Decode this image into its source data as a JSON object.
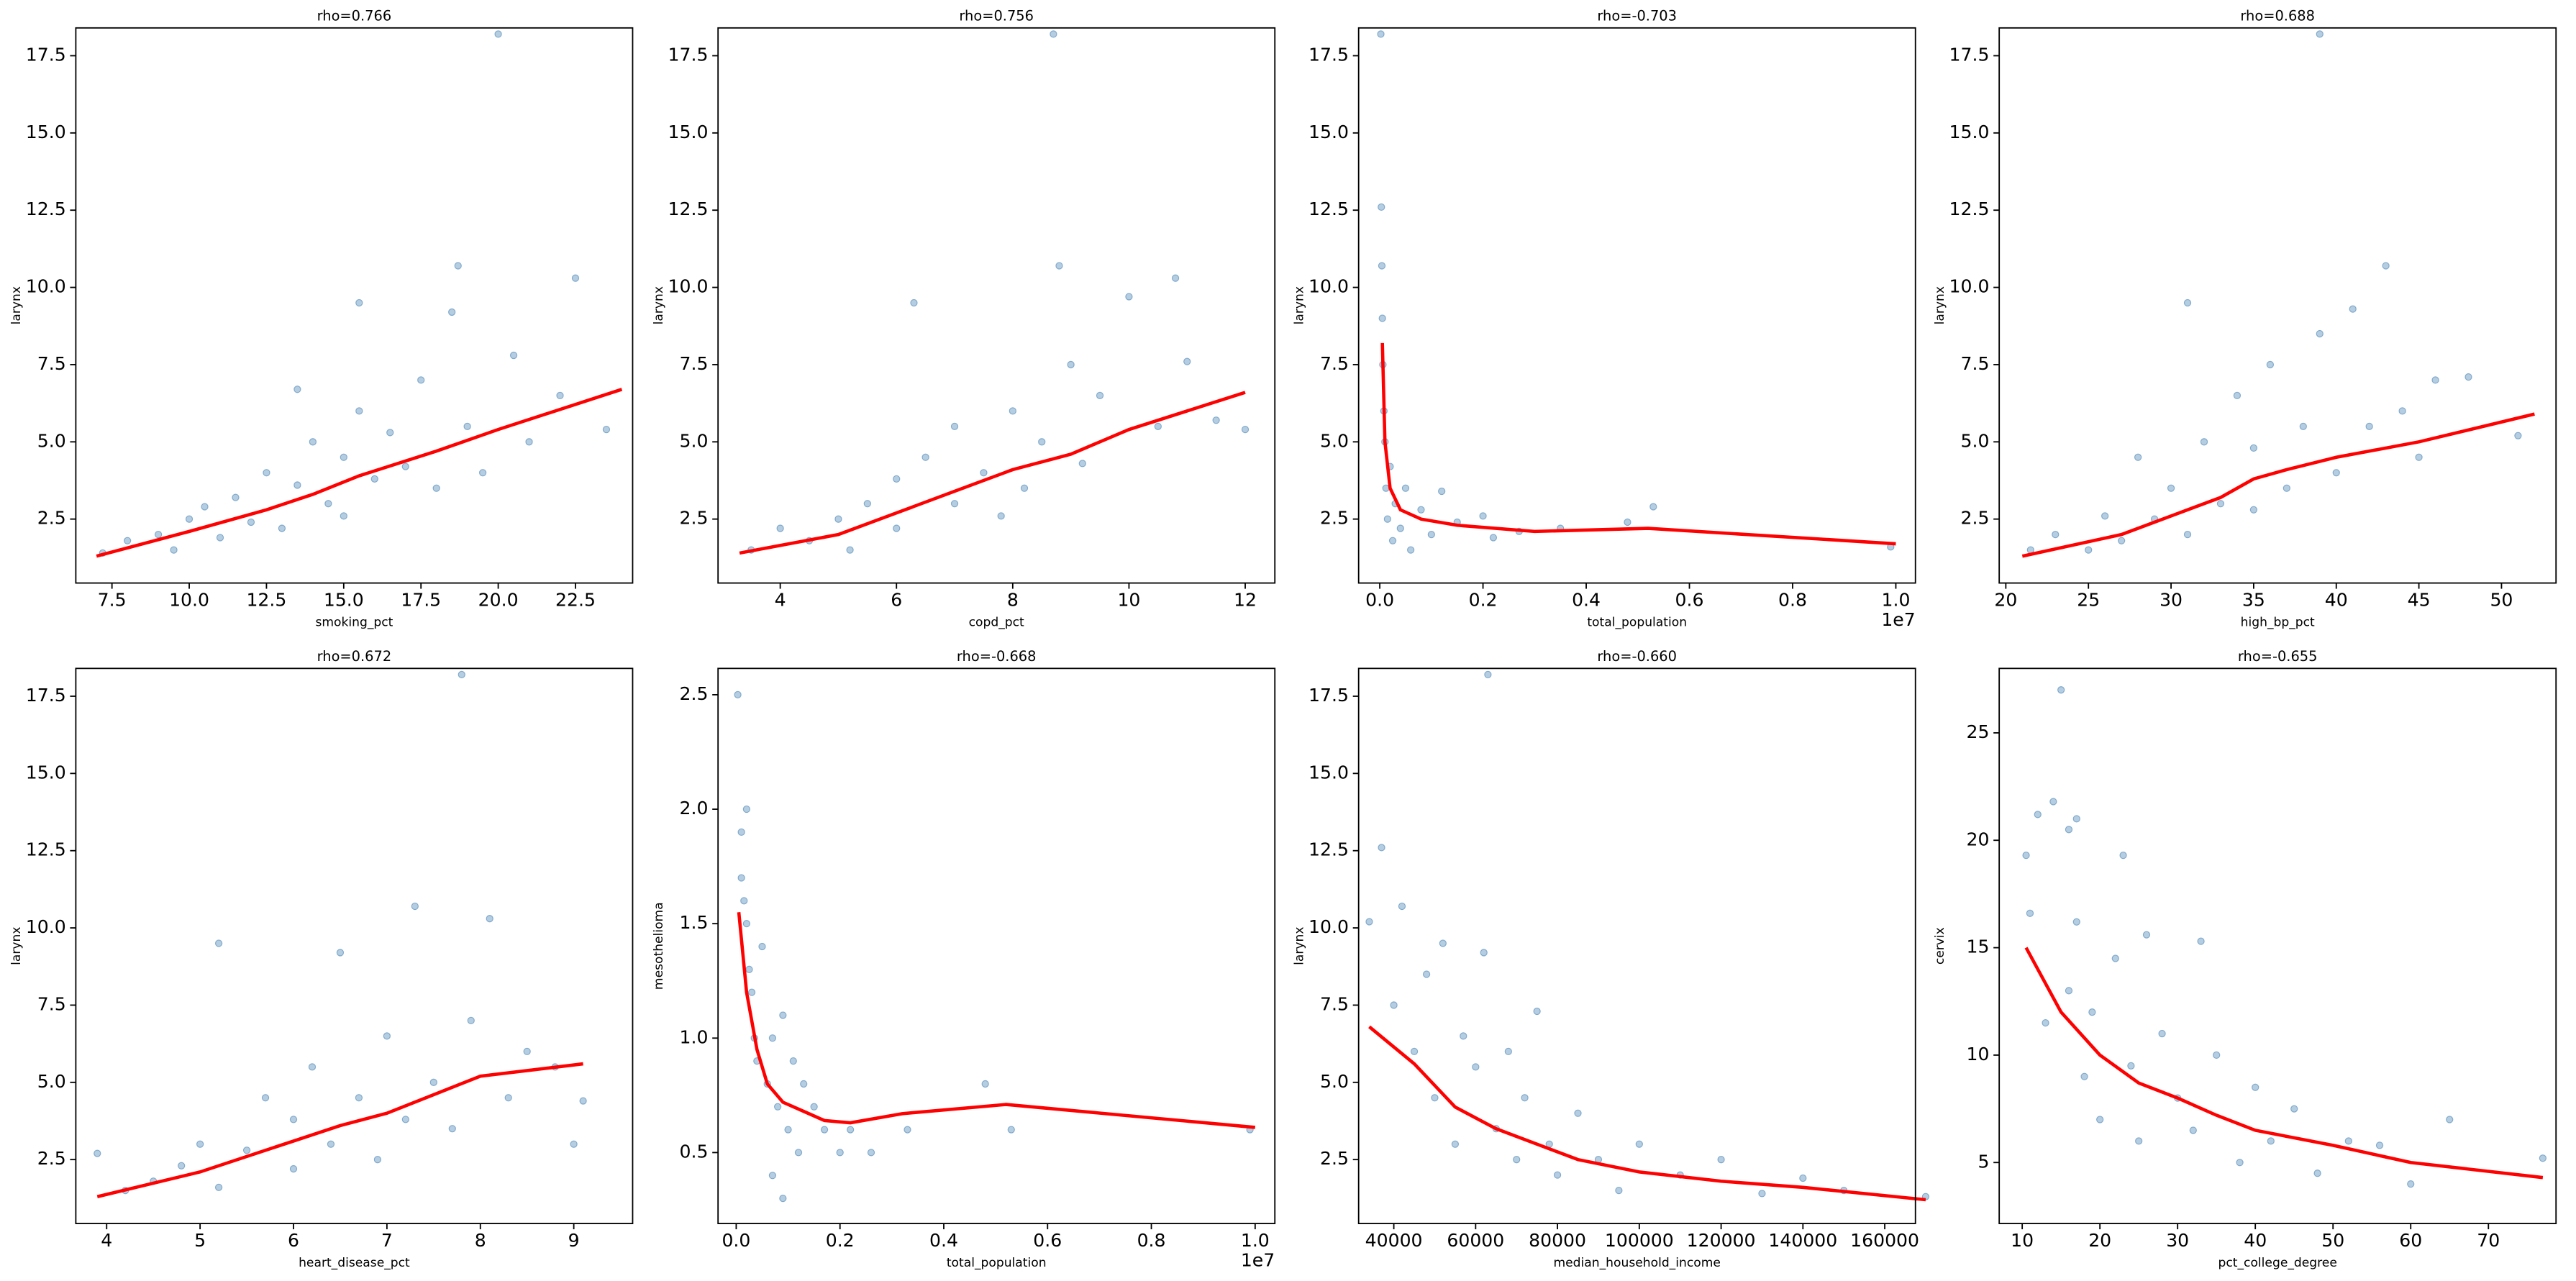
{
  "chart_data": [
    {
      "type": "scatter",
      "title": "rho=0.766",
      "xlabel": "smoking_pct",
      "ylabel": "larynx",
      "color": "#4682b4",
      "trend_color": "red",
      "x": [
        7.2,
        8,
        9,
        9.5,
        10,
        10.5,
        11,
        11.5,
        12,
        12.5,
        13,
        13.5,
        14,
        14.5,
        15,
        15,
        15.5,
        16,
        16.5,
        17,
        17.5,
        18,
        18.5,
        19,
        19.5,
        20,
        20.5,
        21,
        22,
        22.5,
        23.5,
        13.5,
        15.5,
        18.7
      ],
      "y": [
        1.4,
        1.8,
        2.0,
        1.5,
        2.5,
        2.9,
        1.9,
        3.2,
        2.4,
        4.0,
        2.2,
        3.6,
        5.0,
        3.0,
        4.5,
        2.6,
        6.0,
        3.8,
        5.3,
        4.2,
        7.0,
        3.5,
        9.2,
        5.5,
        4.0,
        18.2,
        7.8,
        5.0,
        6.5,
        10.3,
        5.4,
        6.7,
        9.5,
        10.7
      ],
      "line_x": [
        7,
        10,
        12.5,
        14,
        15.5,
        18,
        20,
        24
      ],
      "line_y": [
        1.3,
        2.1,
        2.8,
        3.3,
        3.9,
        4.7,
        5.4,
        6.7
      ],
      "xlim": [
        6.33,
        24.35
      ],
      "ylim": [
        0.43,
        18.4
      ],
      "xticks": [
        7.5,
        {
          "value": 10,
          "label": "10.0"
        },
        12.5,
        {
          "value": 15,
          "label": "15.0"
        },
        17.5,
        {
          "value": 20,
          "label": "20.0"
        },
        22.5
      ],
      "yticks": [
        2.5,
        {
          "value": 5,
          "label": "5.0"
        },
        7.5,
        {
          "value": 10,
          "label": "10.0"
        },
        12.5,
        {
          "value": 15,
          "label": "15.0"
        },
        17.5
      ]
    },
    {
      "type": "scatter",
      "title": "rho=0.756",
      "xlabel": "copd_pct",
      "ylabel": "larynx",
      "color": "#4682b4",
      "trend_color": "red",
      "x": [
        3.5,
        4,
        4.5,
        5,
        5.2,
        5.5,
        6,
        6,
        6.3,
        6.5,
        7,
        7,
        7.5,
        7.8,
        8,
        8.2,
        8.5,
        8.7,
        8.8,
        9,
        9.2,
        9.5,
        10,
        10.5,
        11,
        11.5,
        12,
        10.8
      ],
      "y": [
        1.5,
        2.2,
        1.8,
        2.5,
        1.5,
        3.0,
        2.2,
        3.8,
        9.5,
        4.5,
        3.0,
        5.5,
        4.0,
        2.6,
        6.0,
        3.5,
        5.0,
        18.2,
        10.7,
        7.5,
        4.3,
        6.5,
        9.7,
        5.5,
        7.6,
        5.7,
        5.4,
        10.3
      ],
      "line_x": [
        3.3,
        5,
        6,
        7,
        8,
        9,
        10,
        12
      ],
      "line_y": [
        1.4,
        2.0,
        2.7,
        3.4,
        4.1,
        4.6,
        5.4,
        6.6
      ],
      "xlim": [
        2.93,
        12.51
      ],
      "ylim": [
        0.43,
        18.4
      ],
      "xticks": [
        4,
        6,
        8,
        10,
        12
      ],
      "yticks": [
        2.5,
        {
          "value": 5,
          "label": "5.0"
        },
        7.5,
        {
          "value": 10,
          "label": "10.0"
        },
        12.5,
        {
          "value": 15,
          "label": "15.0"
        },
        17.5
      ]
    },
    {
      "type": "scatter",
      "title": "rho=-0.703",
      "xlabel": "total_population",
      "ylabel": "larynx",
      "x_offset_label": "1e7",
      "color": "#4682b4",
      "trend_color": "red",
      "x": [
        0.002,
        0.003,
        0.004,
        0.005,
        0.006,
        0.008,
        0.01,
        0.012,
        0.015,
        0.02,
        0.025,
        0.03,
        0.04,
        0.05,
        0.06,
        0.08,
        0.1,
        0.12,
        0.15,
        0.2,
        0.22,
        0.27,
        0.35,
        0.48,
        0.53,
        0.99
      ],
      "y": [
        18.2,
        12.6,
        10.7,
        9.0,
        7.5,
        6.0,
        5.0,
        3.5,
        2.5,
        4.2,
        1.8,
        3.0,
        2.2,
        3.5,
        1.5,
        2.8,
        2.0,
        3.4,
        2.4,
        2.6,
        1.9,
        2.1,
        2.2,
        2.4,
        2.9,
        1.6
      ],
      "line_x": [
        0.005,
        0.01,
        0.02,
        0.04,
        0.08,
        0.15,
        0.3,
        0.52,
        1.0
      ],
      "line_y": [
        8.2,
        5.0,
        3.5,
        2.8,
        2.5,
        2.3,
        2.1,
        2.2,
        1.7
      ],
      "xlim": [
        -0.041,
        1.038
      ],
      "ylim": [
        0.43,
        18.4
      ],
      "xticks": [
        {
          "value": 0,
          "label": "0.0"
        },
        0.2,
        0.4,
        0.6,
        0.8,
        {
          "value": 1,
          "label": "1.0"
        }
      ],
      "yticks": [
        2.5,
        {
          "value": 5,
          "label": "5.0"
        },
        7.5,
        {
          "value": 10,
          "label": "10.0"
        },
        12.5,
        {
          "value": 15,
          "label": "15.0"
        },
        17.5
      ]
    },
    {
      "type": "scatter",
      "title": "rho=0.688",
      "xlabel": "high_bp_pct",
      "ylabel": "larynx",
      "color": "#4682b4",
      "trend_color": "red",
      "x": [
        21.5,
        23,
        25,
        26,
        27,
        28,
        29,
        30,
        31,
        31,
        32,
        33,
        34,
        35,
        35,
        36,
        37,
        38,
        39,
        39,
        40,
        41,
        42,
        43,
        44,
        45,
        46,
        48,
        51
      ],
      "y": [
        1.5,
        2.0,
        1.5,
        2.6,
        1.8,
        4.5,
        2.5,
        3.5,
        9.5,
        2.0,
        5.0,
        3.0,
        6.5,
        2.8,
        4.8,
        7.5,
        3.5,
        5.5,
        18.2,
        8.5,
        4.0,
        9.3,
        5.5,
        10.7,
        6.0,
        4.5,
        7.0,
        7.1,
        5.2
      ],
      "line_x": [
        21,
        27,
        30,
        33,
        35,
        37,
        40,
        45,
        52
      ],
      "line_y": [
        1.3,
        2.0,
        2.6,
        3.2,
        3.8,
        4.1,
        4.5,
        5.0,
        5.9
      ],
      "xlim": [
        19.6,
        53.3
      ],
      "ylim": [
        0.43,
        18.4
      ],
      "xticks": [
        20,
        25,
        30,
        35,
        40,
        45,
        50
      ],
      "yticks": [
        2.5,
        {
          "value": 5,
          "label": "5.0"
        },
        7.5,
        {
          "value": 10,
          "label": "10.0"
        },
        12.5,
        {
          "value": 15,
          "label": "15.0"
        },
        17.5
      ]
    },
    {
      "type": "scatter",
      "title": "rho=0.672",
      "xlabel": "heart_disease_pct",
      "ylabel": "larynx",
      "color": "#4682b4",
      "trend_color": "red",
      "x": [
        3.9,
        4.2,
        4.5,
        4.8,
        5,
        5.2,
        5.2,
        5.5,
        5.7,
        6,
        6,
        6.2,
        6.4,
        6.5,
        6.7,
        6.9,
        7,
        7.2,
        7.3,
        7.5,
        7.7,
        7.8,
        7.9,
        8.1,
        8.3,
        8.5,
        8.8,
        9.1,
        9.0
      ],
      "y": [
        2.7,
        1.5,
        1.8,
        2.3,
        3.0,
        1.6,
        9.5,
        2.8,
        4.5,
        2.2,
        3.8,
        5.5,
        3.0,
        9.2,
        4.5,
        2.5,
        6.5,
        3.8,
        10.7,
        5.0,
        3.5,
        18.2,
        7.0,
        10.3,
        4.5,
        6.0,
        5.5,
        4.4,
        3.0
      ],
      "line_x": [
        3.9,
        5,
        5.5,
        6,
        6.5,
        7,
        7.5,
        8,
        9.1
      ],
      "line_y": [
        1.3,
        2.1,
        2.6,
        3.1,
        3.6,
        4.0,
        4.6,
        5.2,
        5.6
      ],
      "xlim": [
        3.67,
        9.63
      ],
      "ylim": [
        0.43,
        18.4
      ],
      "xticks": [
        4,
        5,
        6,
        7,
        8,
        9
      ],
      "yticks": [
        2.5,
        {
          "value": 5,
          "label": "5.0"
        },
        7.5,
        {
          "value": 10,
          "label": "10.0"
        },
        12.5,
        {
          "value": 15,
          "label": "15.0"
        },
        17.5
      ]
    },
    {
      "type": "scatter",
      "title": "rho=-0.668",
      "xlabel": "total_population",
      "ylabel": "mesothelioma",
      "x_offset_label": "1e7",
      "color": "#4682b4",
      "trend_color": "red",
      "x": [
        0.003,
        0.01,
        0.02,
        0.01,
        0.015,
        0.02,
        0.025,
        0.03,
        0.035,
        0.04,
        0.05,
        0.06,
        0.07,
        0.08,
        0.09,
        0.1,
        0.11,
        0.12,
        0.13,
        0.15,
        0.17,
        0.2,
        0.22,
        0.26,
        0.33,
        0.48,
        0.53,
        0.99,
        0.09,
        0.07
      ],
      "y": [
        2.5,
        1.9,
        2.0,
        1.7,
        1.6,
        1.5,
        1.3,
        1.2,
        1.0,
        0.9,
        1.4,
        0.8,
        1.0,
        0.7,
        1.1,
        0.6,
        0.9,
        0.5,
        0.8,
        0.7,
        0.6,
        0.5,
        0.6,
        0.5,
        0.6,
        0.8,
        0.6,
        0.6,
        0.3,
        0.4
      ],
      "line_x": [
        0.005,
        0.02,
        0.04,
        0.06,
        0.09,
        0.13,
        0.17,
        0.22,
        0.32,
        0.52,
        1.0
      ],
      "line_y": [
        1.55,
        1.2,
        0.95,
        0.8,
        0.72,
        0.68,
        0.64,
        0.63,
        0.67,
        0.71,
        0.61
      ],
      "xlim": [
        -0.035,
        1.038
      ],
      "ylim": [
        0.19,
        2.615
      ],
      "xticks": [
        {
          "value": 0,
          "label": "0.0"
        },
        0.2,
        0.4,
        0.6,
        0.8,
        {
          "value": 1,
          "label": "1.0"
        }
      ],
      "yticks": [
        0.5,
        {
          "value": 1,
          "label": "1.0"
        },
        1.5,
        {
          "value": 2,
          "label": "2.0"
        },
        2.5
      ]
    },
    {
      "type": "scatter",
      "title": "rho=-0.660",
      "xlabel": "median_household_income",
      "ylabel": "larynx",
      "color": "#4682b4",
      "trend_color": "red",
      "x": [
        34000,
        37000,
        40000,
        42000,
        45000,
        48000,
        50000,
        52000,
        55000,
        57000,
        60000,
        62000,
        63000,
        65000,
        68000,
        70000,
        72000,
        75000,
        78000,
        80000,
        85000,
        90000,
        95000,
        100000,
        110000,
        120000,
        130000,
        140000,
        150000,
        170000
      ],
      "y": [
        10.2,
        12.6,
        7.5,
        10.7,
        6.0,
        8.5,
        4.5,
        9.5,
        3.0,
        6.5,
        5.5,
        9.2,
        18.2,
        3.5,
        6.0,
        2.5,
        4.5,
        7.3,
        3.0,
        2.0,
        4.0,
        2.5,
        1.5,
        3.0,
        2.0,
        2.5,
        1.4,
        1.9,
        1.5,
        1.3
      ],
      "line_x": [
        34000,
        45000,
        55000,
        65000,
        75000,
        85000,
        100000,
        120000,
        140000,
        170000
      ],
      "line_y": [
        6.8,
        5.6,
        4.2,
        3.5,
        3.0,
        2.5,
        2.1,
        1.8,
        1.6,
        1.2
      ],
      "xlim": [
        31400,
        167500
      ],
      "ylim": [
        0.43,
        18.4
      ],
      "xticks": [
        40000,
        60000,
        80000,
        100000,
        120000,
        140000,
        160000
      ],
      "yticks": [
        2.5,
        {
          "value": 5,
          "label": "5.0"
        },
        7.5,
        {
          "value": 10,
          "label": "10.0"
        },
        12.5,
        {
          "value": 15,
          "label": "15.0"
        },
        17.5
      ]
    },
    {
      "type": "scatter",
      "title": "rho=-0.655",
      "xlabel": "pct_college_degree",
      "ylabel": "cervix",
      "color": "#4682b4",
      "trend_color": "red",
      "x": [
        10.5,
        11,
        12,
        13,
        14,
        15,
        16,
        16,
        17,
        17,
        18,
        19,
        20,
        22,
        23,
        24,
        25,
        26,
        28,
        30,
        32,
        33,
        35,
        38,
        40,
        42,
        45,
        48,
        52,
        56,
        60,
        65,
        77
      ],
      "y": [
        19.3,
        16.6,
        21.2,
        11.5,
        21.8,
        27.0,
        20.5,
        13.0,
        16.2,
        21.0,
        9.0,
        12.0,
        7.0,
        14.5,
        19.3,
        9.5,
        6.0,
        15.6,
        11.0,
        8.0,
        6.5,
        15.3,
        10.0,
        5.0,
        8.5,
        6.0,
        7.5,
        4.5,
        6.0,
        5.8,
        4.0,
        7.0,
        5.2
      ],
      "line_x": [
        10.5,
        15,
        20,
        25,
        30,
        35,
        40,
        50,
        60,
        77
      ],
      "line_y": [
        15.0,
        12.0,
        10.0,
        8.7,
        8.0,
        7.2,
        6.5,
        5.8,
        5.0,
        4.3
      ],
      "xlim": [
        7.04,
        78.7
      ],
      "ylim": [
        2.16,
        28.0
      ],
      "xticks": [
        10,
        20,
        30,
        40,
        50,
        60,
        70
      ],
      "yticks": [
        5,
        10,
        15,
        20,
        25
      ]
    }
  ]
}
